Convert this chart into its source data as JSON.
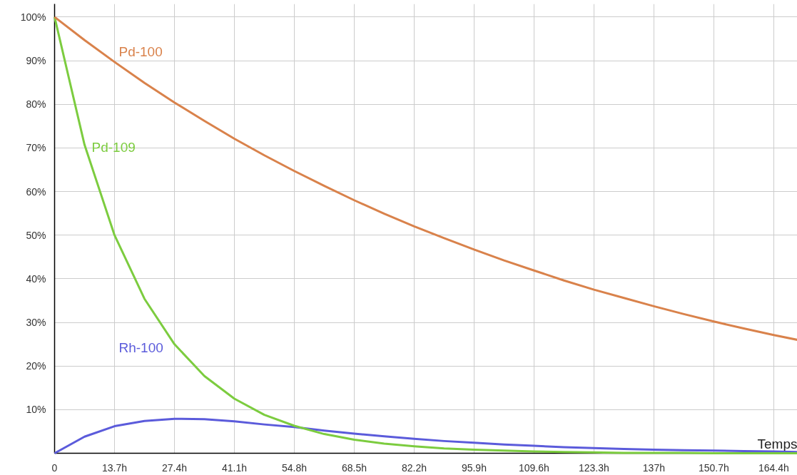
{
  "chart_data": {
    "type": "line",
    "xlabel": "Temps",
    "x": [
      0,
      6.85,
      13.7,
      20.55,
      27.4,
      34.25,
      41.1,
      47.95,
      54.8,
      61.65,
      68.5,
      75.35,
      82.2,
      89.05,
      95.9,
      102.75,
      109.6,
      116.45,
      123.3,
      130.15,
      137,
      143.85,
      150.7,
      157.55,
      164.4,
      169.8
    ],
    "series": [
      {
        "name": "Pd-100",
        "color": "#d9824b",
        "values": [
          100,
          94.7,
          89.7,
          84.9,
          80.4,
          76.2,
          72.1,
          68.3,
          64.7,
          61.3,
          58.0,
          54.9,
          52.0,
          49.3,
          46.7,
          44.2,
          41.9,
          39.6,
          37.5,
          35.6,
          33.7,
          31.9,
          30.2,
          28.6,
          27.1,
          26.0
        ]
      },
      {
        "name": "Pd-109",
        "color": "#7ccc3f",
        "values": [
          100,
          70.7,
          50,
          35.4,
          25,
          17.7,
          12.5,
          8.8,
          6.3,
          4.4,
          3.1,
          2.2,
          1.6,
          1.1,
          0.8,
          0.6,
          0.4,
          0.3,
          0.2,
          0.1,
          0.1,
          0.1,
          0.0,
          0.0,
          0.0,
          0.0
        ]
      },
      {
        "name": "Rh-100",
        "color": "#5b5bdb",
        "values": [
          0,
          3.8,
          6.2,
          7.4,
          7.9,
          7.8,
          7.3,
          6.6,
          6.0,
          5.2,
          4.5,
          3.9,
          3.3,
          2.8,
          2.4,
          2.0,
          1.7,
          1.4,
          1.2,
          1.0,
          0.8,
          0.7,
          0.6,
          0.5,
          0.4,
          0.3
        ]
      }
    ],
    "xlim": [
      0,
      169.8
    ],
    "ylim": [
      0,
      103
    ],
    "xticks": [
      0,
      {
        "value": 13.7,
        "label": "13.7h"
      },
      {
        "value": 27.4,
        "label": "27.4h"
      },
      {
        "value": 41.1,
        "label": "41.1h"
      },
      {
        "value": 54.8,
        "label": "54.8h"
      },
      {
        "value": 68.5,
        "label": "68.5h"
      },
      {
        "value": 82.2,
        "label": "82.2h"
      },
      {
        "value": 95.9,
        "label": "95.9h"
      },
      {
        "value": 109.6,
        "label": "109.6h"
      },
      {
        "value": 123.3,
        "label": "123.3h"
      },
      {
        "value": 137,
        "label": "137h"
      },
      {
        "value": 150.7,
        "label": "150.7h"
      },
      {
        "value": 164.4,
        "label": "164.4h"
      }
    ],
    "yticks": [
      {
        "value": 10,
        "label": "10%"
      },
      {
        "value": 20,
        "label": "20%"
      },
      {
        "value": 30,
        "label": "30%"
      },
      {
        "value": 40,
        "label": "40%"
      },
      {
        "value": 50,
        "label": "50%"
      },
      {
        "value": 60,
        "label": "60%"
      },
      {
        "value": 70,
        "label": "70%"
      },
      {
        "value": 80,
        "label": "80%"
      },
      {
        "value": 90,
        "label": "90%"
      },
      {
        "value": 100,
        "label": "100%"
      }
    ],
    "grid": true,
    "legend": false,
    "marker": "none",
    "line_style": "solid"
  }
}
